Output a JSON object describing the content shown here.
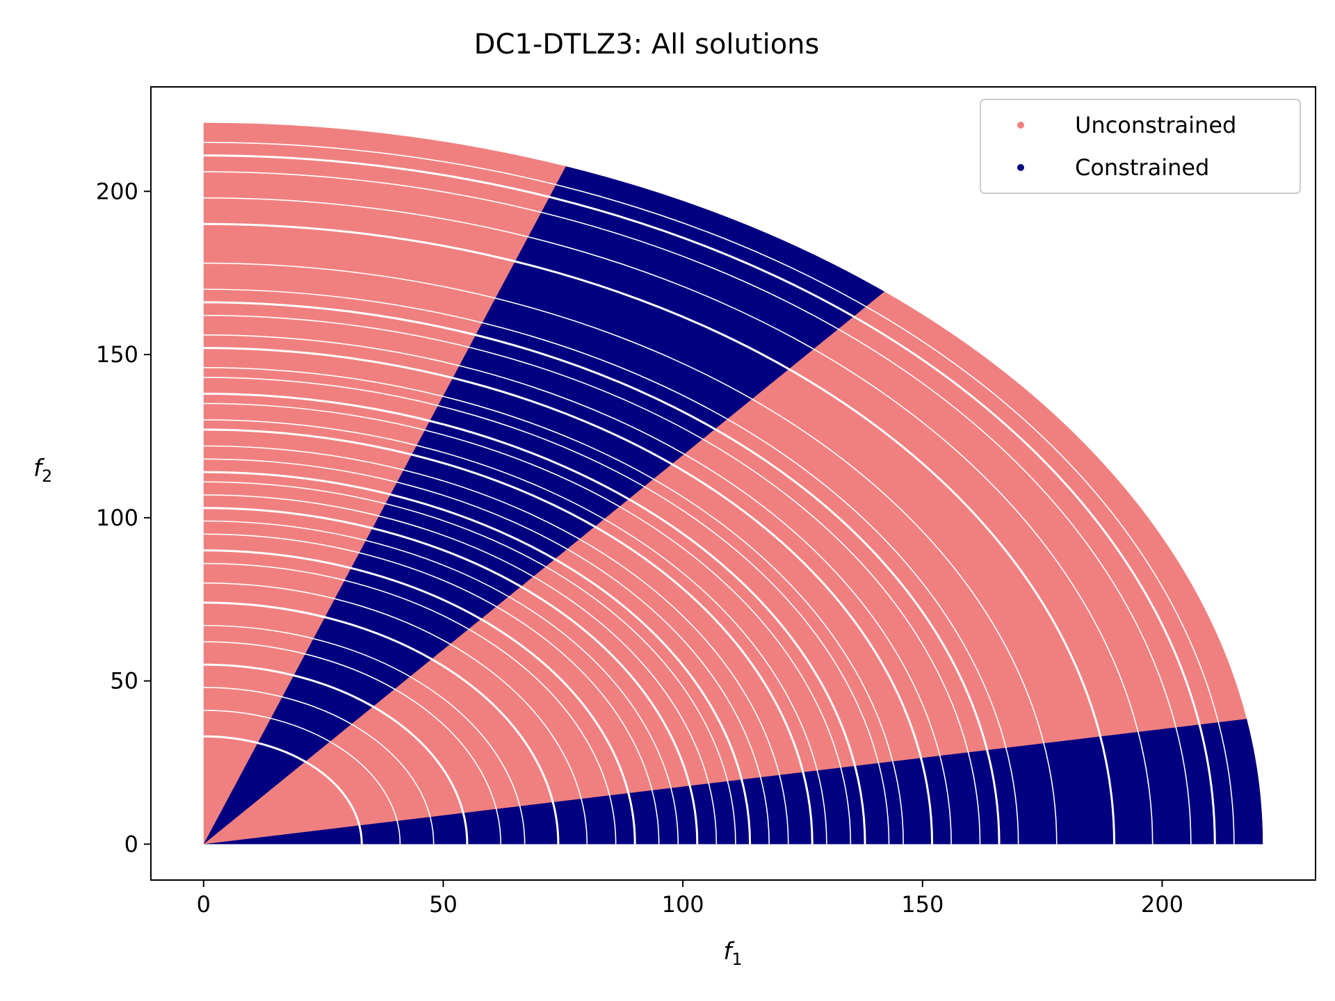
{
  "chart_data": {
    "type": "scatter",
    "title": "DC1-DTLZ3: All solutions",
    "xlabel": "f1",
    "ylabel": "f2",
    "xlim": [
      -11,
      232
    ],
    "ylim": [
      -11,
      232
    ],
    "xticks": [
      0,
      50,
      100,
      150,
      200
    ],
    "yticks": [
      0,
      50,
      100,
      150,
      200
    ],
    "grid": false,
    "legend_position": "top-right",
    "series": [
      {
        "name": "Unconstrained",
        "color": "#f08080",
        "region": {
          "shape": "quarter-annulus-fan",
          "radius_min": 0,
          "radius_max": 221,
          "angle_deg": [
            0,
            90
          ]
        }
      },
      {
        "name": "Constrained",
        "color": "#000080",
        "region": {
          "shape": "angular-wedges",
          "radius_min": 0,
          "radius_max": 221,
          "wedges_deg": [
            [
              0,
              10
            ],
            [
              50,
              70
            ]
          ]
        }
      }
    ],
    "gap_radii": [
      33,
      41,
      48,
      55,
      62,
      67,
      74,
      80,
      86,
      90,
      95,
      99,
      103,
      107,
      111,
      114,
      118,
      122,
      127,
      130,
      135,
      138,
      143,
      146,
      152,
      156,
      162,
      166,
      170,
      178,
      190,
      198,
      206,
      211,
      215
    ]
  }
}
